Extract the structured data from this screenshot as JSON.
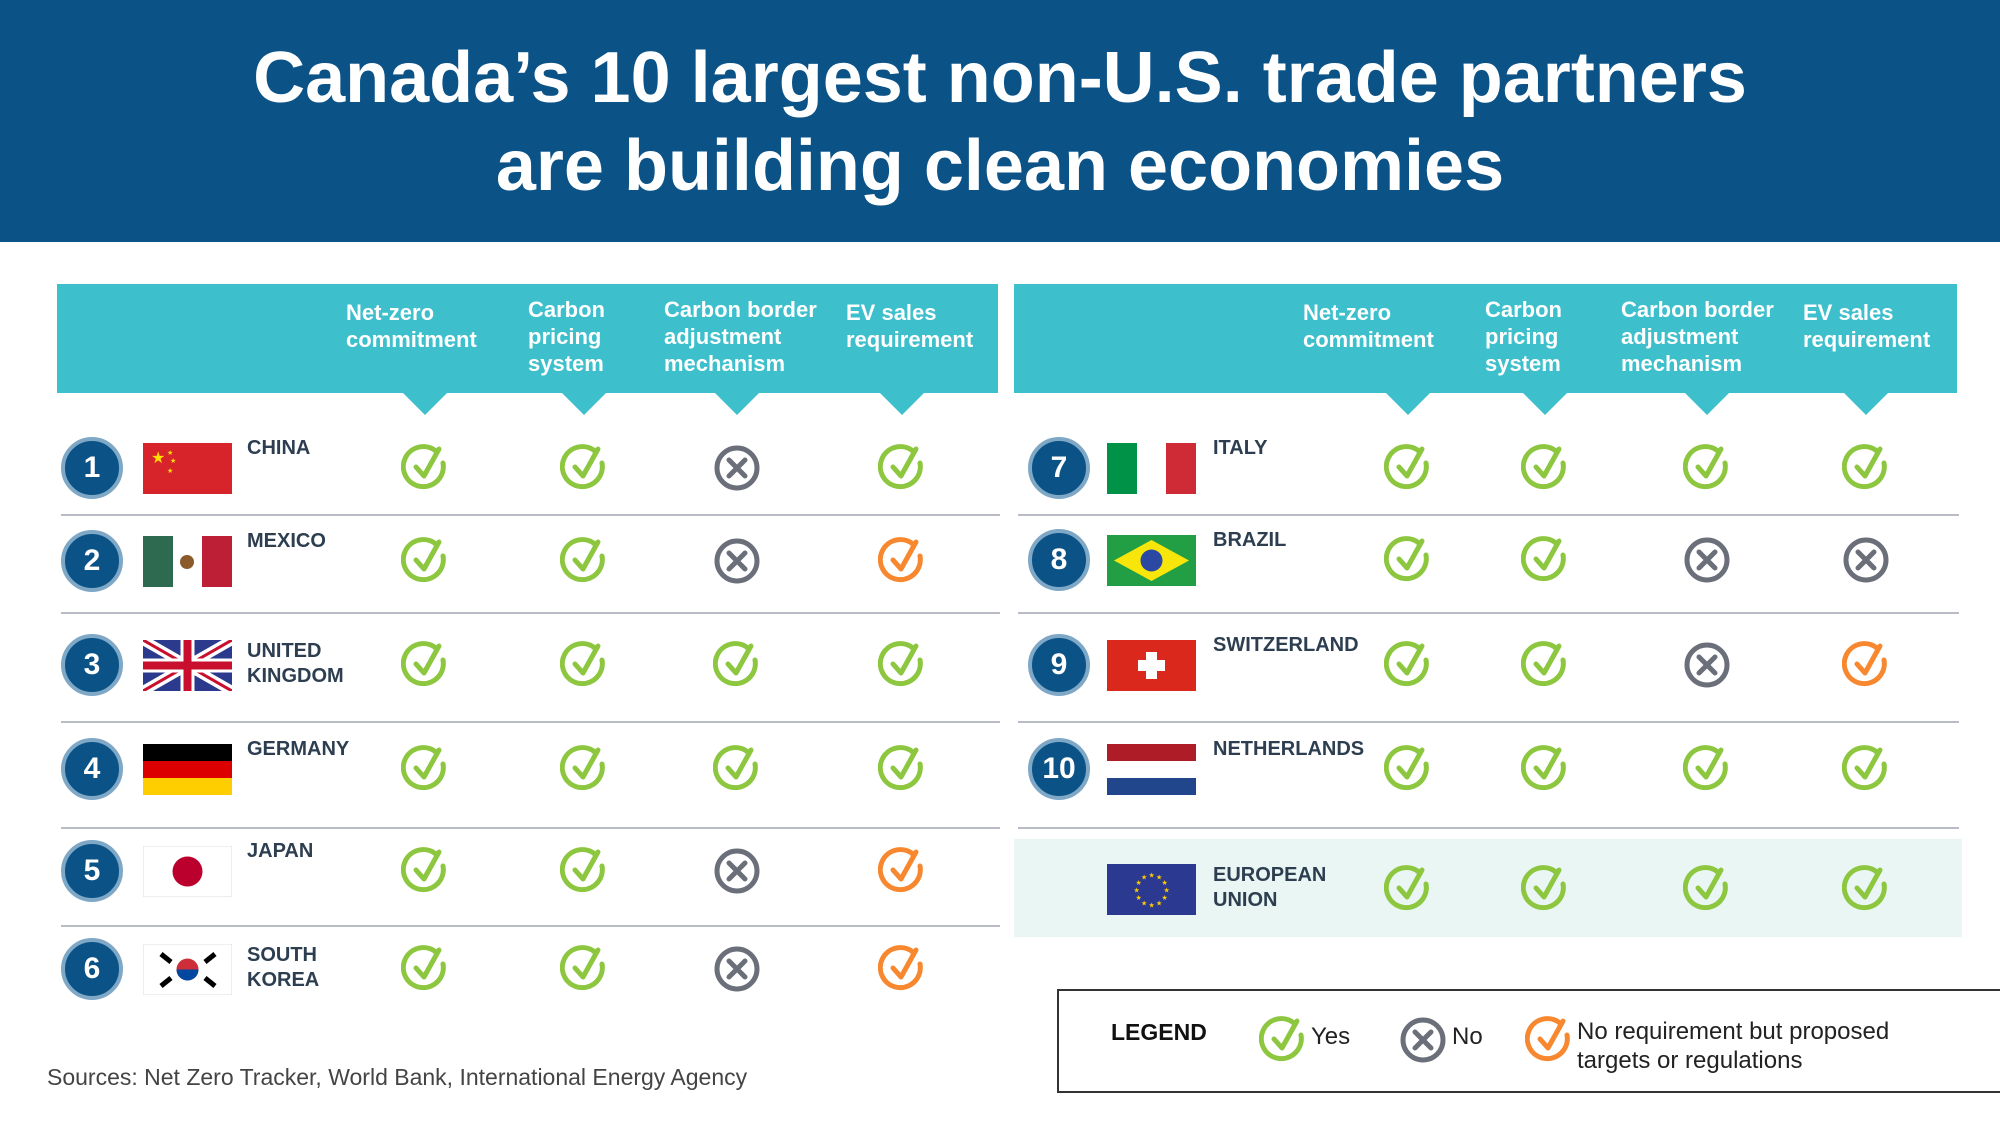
{
  "title": {
    "line1": "Canada’s 10 largest non-U.S. trade partners",
    "line2": "are building clean economies"
  },
  "columns": [
    [
      "Net-zero",
      "commitment"
    ],
    [
      "Carbon",
      "pricing",
      "system"
    ],
    [
      "Carbon border",
      "adjustment",
      "mechanism"
    ],
    [
      "EV sales",
      "requirement"
    ]
  ],
  "colors": {
    "yes": "#8dc63f",
    "no": "#6b6f7a",
    "proposed": "#f7882f",
    "header": "#0b5287",
    "teal": "#3dbfcc"
  },
  "left": [
    {
      "rank": "1",
      "name": [
        "CHINA"
      ],
      "flag": "cn",
      "status": [
        "yes",
        "yes",
        "no",
        "yes"
      ]
    },
    {
      "rank": "2",
      "name": [
        "MEXICO"
      ],
      "flag": "mx",
      "status": [
        "yes",
        "yes",
        "no",
        "proposed"
      ]
    },
    {
      "rank": "3",
      "name": [
        "UNITED",
        "KINGDOM"
      ],
      "flag": "gb",
      "status": [
        "yes",
        "yes",
        "yes",
        "yes"
      ]
    },
    {
      "rank": "4",
      "name": [
        "GERMANY"
      ],
      "flag": "de",
      "status": [
        "yes",
        "yes",
        "yes",
        "yes"
      ]
    },
    {
      "rank": "5",
      "name": [
        "JAPAN"
      ],
      "flag": "jp",
      "status": [
        "yes",
        "yes",
        "no",
        "proposed"
      ]
    },
    {
      "rank": "6",
      "name": [
        "SOUTH",
        "KOREA"
      ],
      "flag": "kr",
      "status": [
        "yes",
        "yes",
        "no",
        "proposed"
      ]
    }
  ],
  "right": [
    {
      "rank": "7",
      "name": [
        "ITALY"
      ],
      "flag": "it",
      "status": [
        "yes",
        "yes",
        "yes",
        "yes"
      ]
    },
    {
      "rank": "8",
      "name": [
        "BRAZIL"
      ],
      "flag": "br",
      "status": [
        "yes",
        "yes",
        "no",
        "no"
      ]
    },
    {
      "rank": "9",
      "name": [
        "SWITZERLAND"
      ],
      "flag": "ch",
      "status": [
        "yes",
        "yes",
        "no",
        "proposed"
      ]
    },
    {
      "rank": "10",
      "name": [
        "NETHERLANDS"
      ],
      "flag": "nl",
      "status": [
        "yes",
        "yes",
        "yes",
        "yes"
      ]
    },
    {
      "rank": "",
      "name": [
        "EUROPEAN",
        "UNION"
      ],
      "flag": "eu",
      "status": [
        "yes",
        "yes",
        "yes",
        "yes"
      ]
    }
  ],
  "legend": {
    "title": "LEGEND",
    "yes": "Yes",
    "no": "No",
    "proposed": [
      "No requirement but proposed",
      "targets or regulations"
    ]
  },
  "sources": "Sources: Net Zero Tracker, World Bank, International Energy Agency"
}
